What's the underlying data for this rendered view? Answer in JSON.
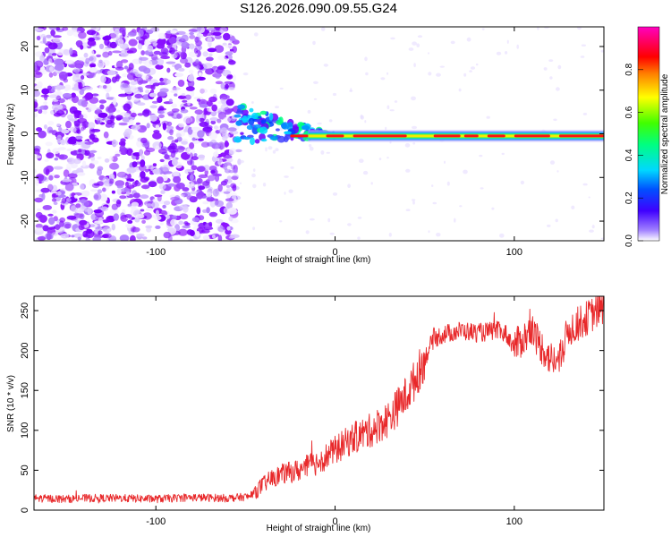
{
  "title": "S126.2026.090.09.55.G24",
  "colors": {
    "snr_line": "#e8282a",
    "spectrum_low": "#7b00ff",
    "spectrum_high": "#ff0000",
    "axis": "#000000"
  },
  "chart_data": [
    {
      "id": "spectrogram",
      "type": "heatmap",
      "title": "",
      "xlabel": "Height of straight line (km)",
      "ylabel": "Frequency (Hz)",
      "xlim": [
        -168,
        150
      ],
      "ylim": [
        -24.5,
        24.5
      ],
      "xticks": [
        -100,
        0,
        100
      ],
      "yticks": [
        -20,
        -10,
        0,
        10,
        20
      ],
      "colorbar": {
        "label": "Normalized spectral amplitude",
        "range": [
          0,
          1
        ],
        "ticks": [
          0.0,
          0.2,
          0.4,
          0.6,
          0.8
        ],
        "colormap": "rainbow (violet-blue-cyan-green-yellow-red-magenta)"
      },
      "description_of_signal": {
        "noise_region_x": [
          -168,
          -55
        ],
        "transition_region_x": [
          -55,
          -10
        ],
        "tone_region_x": [
          -10,
          150
        ],
        "tone_frequency_hz": -0.5
      }
    },
    {
      "id": "snr",
      "type": "line",
      "title": "",
      "xlabel": "Height of straight line (km)",
      "ylabel": "SNR (10 * v/v)",
      "xlim": [
        -168,
        150
      ],
      "ylim": [
        0,
        268
      ],
      "xticks": [
        -100,
        0,
        100
      ],
      "yticks": [
        0,
        50,
        100,
        150,
        200,
        250
      ],
      "series": [
        {
          "name": "SNR",
          "x": [
            -168,
            -150,
            -140,
            -120,
            -100,
            -80,
            -60,
            -48,
            -40,
            -35,
            -30,
            -20,
            -10,
            0,
            10,
            20,
            30,
            40,
            45,
            50,
            55,
            60,
            70,
            80,
            90,
            95,
            100,
            105,
            110,
            115,
            120,
            125,
            130,
            140,
            150
          ],
          "values": [
            15,
            14,
            15,
            15,
            14,
            16,
            15,
            17,
            32,
            40,
            45,
            50,
            60,
            75,
            90,
            100,
            115,
            145,
            165,
            190,
            215,
            220,
            225,
            222,
            225,
            222,
            205,
            215,
            225,
            205,
            190,
            185,
            225,
            240,
            255
          ]
        }
      ]
    }
  ]
}
